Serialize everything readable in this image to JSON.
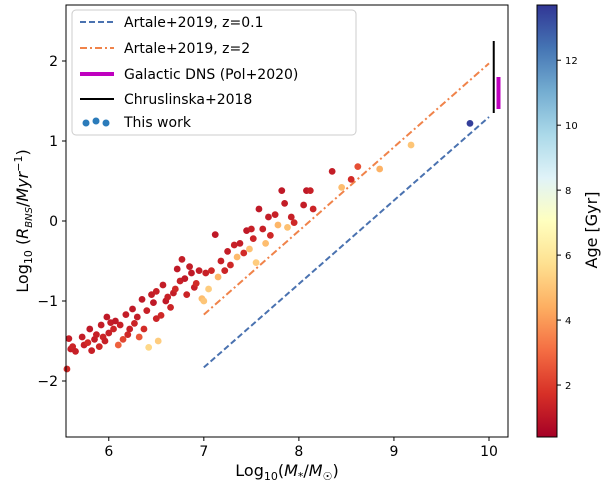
{
  "chart_data": {
    "type": "scatter",
    "xlabel": "Log₁₀(M*/M☉)",
    "ylabel": "Log₁₀ (R_BNS/Myr⁻¹)",
    "xlim": [
      5.55,
      10.2
    ],
    "ylim": [
      -2.7,
      2.7
    ],
    "x_ticks": [
      6,
      7,
      8,
      9,
      10
    ],
    "y_ticks": [
      -2,
      -1,
      0,
      1,
      2
    ],
    "grid": false,
    "legend_position": "top-left",
    "colorbar": {
      "label": "Age [Gyr]",
      "range": [
        0.4,
        13.7
      ],
      "ticks": [
        2,
        4,
        6,
        8,
        10,
        12
      ],
      "colormap": "RdYlBu",
      "stops": [
        "#a50026",
        "#d73027",
        "#f46d43",
        "#fdae61",
        "#fee090",
        "#ffffbf",
        "#e0f3f8",
        "#abd9e9",
        "#74add1",
        "#4575b4",
        "#313695"
      ]
    },
    "series": [
      {
        "name": "Artale+2019, z=0.1",
        "kind": "line",
        "style": "dashed",
        "color": "#4a72b0",
        "x": [
          7.0,
          10.0
        ],
        "y": [
          -1.83,
          1.3
        ]
      },
      {
        "name": "Artale+2019, z=2",
        "kind": "line",
        "style": "dashdot",
        "color": "#f0834a",
        "x": [
          7.0,
          10.0
        ],
        "y": [
          -1.17,
          1.97
        ]
      },
      {
        "name": "Galactic DNS (Pol+2020)",
        "kind": "errorbar",
        "color": "#bf00bf",
        "x": [
          10.1,
          10.1
        ],
        "y": [
          1.4,
          1.8
        ]
      },
      {
        "name": "Chruslinska+2018",
        "kind": "errorbar",
        "color": "#000000",
        "x": [
          10.05,
          10.05
        ],
        "y": [
          1.35,
          2.25
        ]
      },
      {
        "name": "This work",
        "kind": "scatter",
        "points": [
          [
            5.58,
            -1.47,
            1.2
          ],
          [
            5.6,
            -1.6,
            1.2
          ],
          [
            5.62,
            -1.57,
            1.4
          ],
          [
            5.65,
            -1.63,
            1.3
          ],
          [
            5.56,
            -1.85,
            1.5
          ],
          [
            5.72,
            -1.45,
            1.2
          ],
          [
            5.74,
            -1.55,
            1.3
          ],
          [
            5.78,
            -1.52,
            1.6
          ],
          [
            5.8,
            -1.35,
            1.1
          ],
          [
            5.82,
            -1.62,
            1.3
          ],
          [
            5.85,
            -1.48,
            1.2
          ],
          [
            5.87,
            -1.42,
            1.3
          ],
          [
            5.9,
            -1.57,
            1.5
          ],
          [
            5.92,
            -1.3,
            1.2
          ],
          [
            5.94,
            -1.45,
            1.4
          ],
          [
            5.96,
            -1.5,
            1.3
          ],
          [
            5.98,
            -1.2,
            1.1
          ],
          [
            6.0,
            -1.4,
            1.3
          ],
          [
            6.02,
            -1.27,
            1.2
          ],
          [
            6.05,
            -1.35,
            1.4
          ],
          [
            6.07,
            -1.25,
            1.1
          ],
          [
            6.1,
            -1.55,
            2.8
          ],
          [
            6.12,
            -1.3,
            1.3
          ],
          [
            6.15,
            -1.48,
            2.2
          ],
          [
            6.18,
            -1.17,
            1.2
          ],
          [
            6.2,
            -1.42,
            1.5
          ],
          [
            6.22,
            -1.35,
            1.3
          ],
          [
            6.25,
            -1.1,
            1.1
          ],
          [
            6.27,
            -1.28,
            1.4
          ],
          [
            6.3,
            -1.2,
            1.2
          ],
          [
            6.32,
            -1.45,
            2.6
          ],
          [
            6.35,
            -0.98,
            1.1
          ],
          [
            6.37,
            -1.35,
            1.6
          ],
          [
            6.4,
            -1.12,
            1.3
          ],
          [
            6.42,
            -1.58,
            5.5
          ],
          [
            6.45,
            -0.92,
            1.2
          ],
          [
            6.47,
            -1.02,
            1.1
          ],
          [
            6.5,
            -1.22,
            1.4
          ],
          [
            6.5,
            -0.88,
            1.3
          ],
          [
            6.52,
            -1.5,
            5.2
          ],
          [
            6.55,
            -1.18,
            1.5
          ],
          [
            6.57,
            -0.8,
            1.2
          ],
          [
            6.6,
            -1.0,
            1.1
          ],
          [
            6.62,
            -0.95,
            1.3
          ],
          [
            6.65,
            -1.08,
            1.4
          ],
          [
            6.68,
            -0.9,
            1.2
          ],
          [
            6.7,
            -0.85,
            1.5
          ],
          [
            6.72,
            -0.6,
            1.1
          ],
          [
            6.75,
            -0.75,
            1.3
          ],
          [
            6.77,
            -0.48,
            1.2
          ],
          [
            6.8,
            -0.72,
            1.1
          ],
          [
            6.82,
            -0.92,
            1.4
          ],
          [
            6.85,
            -0.57,
            1.2
          ],
          [
            6.87,
            -0.65,
            1.1
          ],
          [
            6.9,
            -0.83,
            1.3
          ],
          [
            6.92,
            -0.78,
            1.6
          ],
          [
            6.95,
            -0.62,
            1.2
          ],
          [
            6.98,
            -0.97,
            4.8
          ],
          [
            7.0,
            -1.0,
            5.0
          ],
          [
            7.02,
            -0.65,
            1.3
          ],
          [
            7.05,
            -0.85,
            5.2
          ],
          [
            7.08,
            -0.62,
            1.5
          ],
          [
            7.12,
            -0.17,
            1.1
          ],
          [
            7.15,
            -0.7,
            4.6
          ],
          [
            7.18,
            -0.5,
            1.3
          ],
          [
            7.22,
            -0.62,
            1.4
          ],
          [
            7.25,
            -0.38,
            1.2
          ],
          [
            7.28,
            -0.55,
            1.5
          ],
          [
            7.32,
            -0.3,
            1.3
          ],
          [
            7.35,
            -0.45,
            4.7
          ],
          [
            7.38,
            -0.28,
            1.2
          ],
          [
            7.42,
            -0.4,
            1.6
          ],
          [
            7.45,
            -0.12,
            1.1
          ],
          [
            7.48,
            -0.35,
            4.9
          ],
          [
            7.5,
            -0.1,
            1.3
          ],
          [
            7.52,
            -0.22,
            1.4
          ],
          [
            7.55,
            -0.52,
            5.2
          ],
          [
            7.58,
            0.15,
            1.1
          ],
          [
            7.62,
            -0.1,
            1.3
          ],
          [
            7.65,
            -0.28,
            4.8
          ],
          [
            7.68,
            0.05,
            1.2
          ],
          [
            7.7,
            -0.18,
            1.5
          ],
          [
            7.75,
            0.08,
            1.3
          ],
          [
            7.78,
            -0.05,
            4.6
          ],
          [
            7.82,
            0.38,
            1.1
          ],
          [
            7.85,
            0.22,
            1.2
          ],
          [
            7.88,
            -0.08,
            4.9
          ],
          [
            7.92,
            0.05,
            1.3
          ],
          [
            7.95,
            -0.02,
            1.5
          ],
          [
            8.05,
            0.2,
            1.2
          ],
          [
            8.08,
            0.38,
            1.1
          ],
          [
            8.12,
            0.38,
            1.3
          ],
          [
            8.15,
            0.15,
            1.4
          ],
          [
            8.35,
            0.62,
            1.2
          ],
          [
            8.45,
            0.42,
            4.8
          ],
          [
            8.55,
            0.52,
            1.6
          ],
          [
            8.62,
            0.68,
            2.4
          ],
          [
            8.85,
            0.65,
            4.5
          ],
          [
            9.18,
            0.95,
            5.0
          ],
          [
            9.8,
            1.22,
            13.5
          ]
        ]
      }
    ]
  }
}
